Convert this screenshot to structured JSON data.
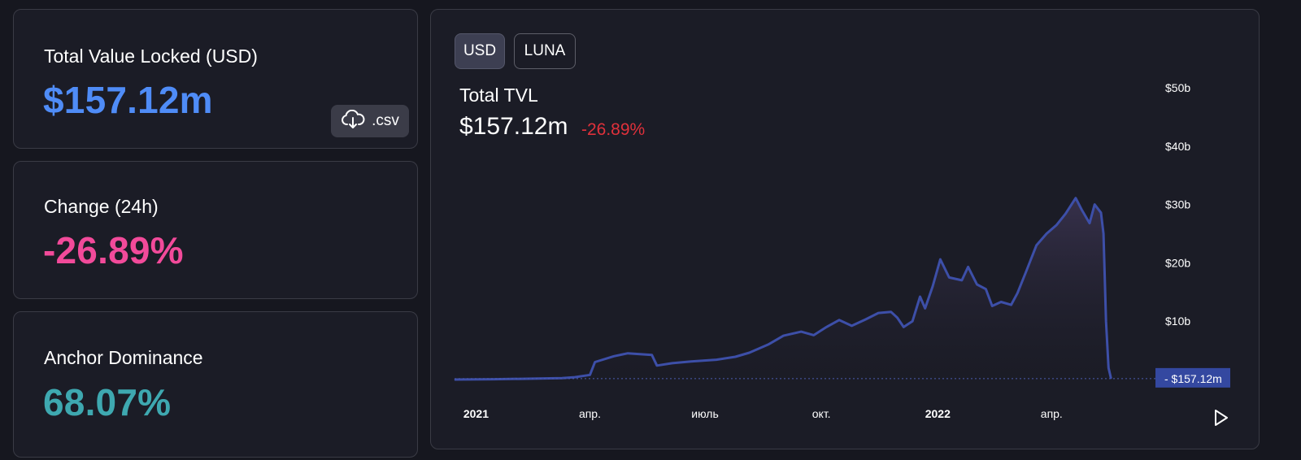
{
  "stats": {
    "tvl": {
      "label": "Total Value Locked (USD)",
      "value": "$157.12m",
      "color": "#4f8cf7"
    },
    "change": {
      "label": "Change (24h)",
      "value": "-26.89%",
      "color": "#f24a9a"
    },
    "dominance": {
      "label": "Anchor Dominance",
      "value": "68.07%",
      "color": "#3ea8b0"
    },
    "csv_label": ".csv",
    "csv_icon": "cloud-download-icon"
  },
  "chart_panel": {
    "toggles": [
      {
        "label": "USD",
        "active": true
      },
      {
        "label": "LUNA",
        "active": false
      }
    ],
    "title": "Total TVL",
    "value": "$157.12m",
    "change": "-26.89%",
    "change_color": "#e0313b",
    "current_label": "$157.12m",
    "play_icon": "play-icon"
  },
  "chart_data": {
    "type": "area",
    "series": [
      {
        "color": "#3d4fa8",
        "points": [
          [
            "2020-12-15",
            0.0
          ],
          [
            "2021-01-15",
            0.05
          ],
          [
            "2021-02-15",
            0.15
          ],
          [
            "2021-03-10",
            0.25
          ],
          [
            "2021-03-20",
            0.4
          ],
          [
            "2021-04-01",
            0.8
          ],
          [
            "2021-04-05",
            3.0
          ],
          [
            "2021-04-20",
            4.0
          ],
          [
            "2021-05-01",
            4.5
          ],
          [
            "2021-05-20",
            4.2
          ],
          [
            "2021-05-24",
            2.4
          ],
          [
            "2021-06-05",
            2.8
          ],
          [
            "2021-06-20",
            3.1
          ],
          [
            "2021-07-10",
            3.4
          ],
          [
            "2021-07-25",
            3.9
          ],
          [
            "2021-08-05",
            4.6
          ],
          [
            "2021-08-20",
            6.0
          ],
          [
            "2021-09-01",
            7.5
          ],
          [
            "2021-09-15",
            8.2
          ],
          [
            "2021-09-25",
            7.6
          ],
          [
            "2021-10-05",
            9.0
          ],
          [
            "2021-10-15",
            10.2
          ],
          [
            "2021-10-25",
            9.2
          ],
          [
            "2021-11-05",
            10.3
          ],
          [
            "2021-11-15",
            11.4
          ],
          [
            "2021-11-25",
            11.6
          ],
          [
            "2021-11-30",
            10.6
          ],
          [
            "2021-12-05",
            9.0
          ],
          [
            "2021-12-12",
            10.0
          ],
          [
            "2021-12-18",
            14.2
          ],
          [
            "2021-12-22",
            12.2
          ],
          [
            "2021-12-28",
            16.0
          ],
          [
            "2022-01-03",
            20.6
          ],
          [
            "2022-01-10",
            17.5
          ],
          [
            "2022-01-20",
            17.0
          ],
          [
            "2022-01-25",
            19.3
          ],
          [
            "2022-02-01",
            16.3
          ],
          [
            "2022-02-08",
            15.5
          ],
          [
            "2022-02-13",
            12.6
          ],
          [
            "2022-02-20",
            13.3
          ],
          [
            "2022-02-28",
            12.8
          ],
          [
            "2022-03-05",
            14.8
          ],
          [
            "2022-03-12",
            18.6
          ],
          [
            "2022-03-20",
            23.0
          ],
          [
            "2022-03-28",
            25.0
          ],
          [
            "2022-04-05",
            26.5
          ],
          [
            "2022-04-12",
            28.4
          ],
          [
            "2022-04-20",
            31.1
          ],
          [
            "2022-04-25",
            29.0
          ],
          [
            "2022-05-01",
            26.8
          ],
          [
            "2022-05-05",
            30.0
          ],
          [
            "2022-05-10",
            28.6
          ],
          [
            "2022-05-12",
            25.0
          ],
          [
            "2022-05-14",
            10.0
          ],
          [
            "2022-05-16",
            2.0
          ],
          [
            "2022-05-18",
            0.157
          ]
        ]
      }
    ],
    "y_ticks": [
      "$50b",
      "$40b",
      "$30b",
      "$20b",
      "$10b"
    ],
    "x_ticks": [
      "2021",
      "апр.",
      "июль",
      "окт.",
      "2022",
      "апр."
    ],
    "ylim": [
      0,
      50
    ],
    "xlim": [
      "2020-12-15",
      "2022-06-15"
    ],
    "grid": false
  }
}
